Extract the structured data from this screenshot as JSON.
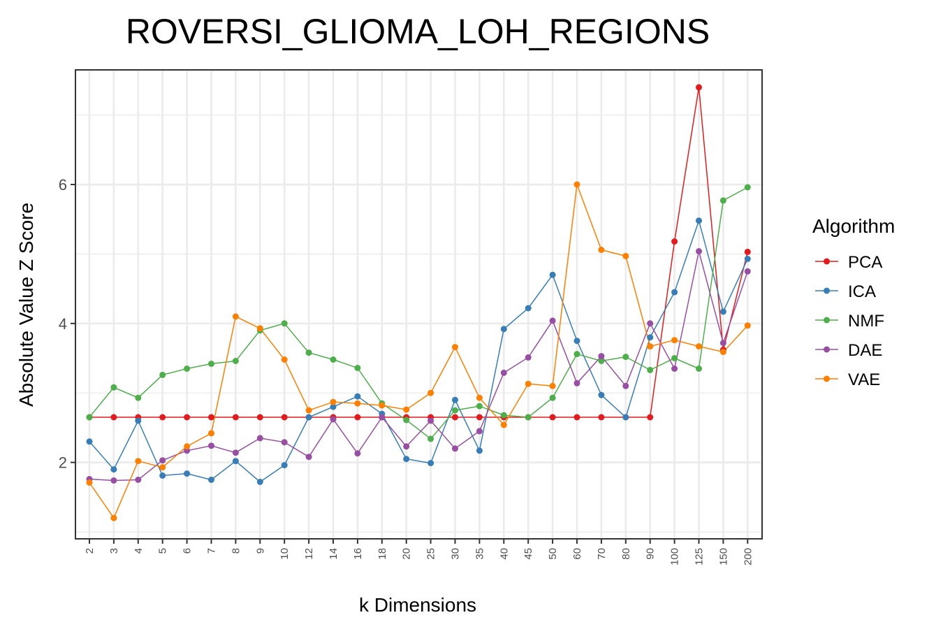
{
  "chart_data": {
    "type": "line",
    "title": "ROVERSI_GLIOMA_LOH_REGIONS",
    "xlabel": "k Dimensions",
    "ylabel": "Absolute Value Z Score",
    "categories": [
      "2",
      "3",
      "4",
      "5",
      "6",
      "7",
      "8",
      "9",
      "10",
      "12",
      "14",
      "16",
      "18",
      "20",
      "25",
      "30",
      "35",
      "40",
      "45",
      "50",
      "60",
      "70",
      "80",
      "90",
      "100",
      "125",
      "150",
      "200"
    ],
    "yticks": [
      2,
      4,
      6
    ],
    "ylim": [
      0.9,
      7.65
    ],
    "grid": true,
    "legend_title": "Algorithm",
    "legend_position": "right",
    "series": [
      {
        "name": "PCA",
        "color": "#e41a1c",
        "values": [
          2.65,
          2.65,
          2.65,
          2.65,
          2.65,
          2.65,
          2.65,
          2.65,
          2.65,
          2.65,
          2.65,
          2.65,
          2.65,
          2.65,
          2.65,
          2.65,
          2.65,
          2.65,
          2.65,
          2.65,
          2.65,
          2.65,
          2.65,
          2.65,
          5.18,
          7.4,
          3.62,
          5.03
        ]
      },
      {
        "name": "ICA",
        "color": "#377eb8",
        "values": [
          2.3,
          1.9,
          2.6,
          1.81,
          1.84,
          1.75,
          2.02,
          1.72,
          1.96,
          2.65,
          2.8,
          2.95,
          2.7,
          2.05,
          1.99,
          2.9,
          2.17,
          3.92,
          4.22,
          4.7,
          3.75,
          2.97,
          2.65,
          3.8,
          4.45,
          5.48,
          4.17,
          4.93
        ]
      },
      {
        "name": "NMF",
        "color": "#4daf4a",
        "values": [
          2.65,
          3.08,
          2.93,
          3.26,
          3.35,
          3.42,
          3.46,
          3.9,
          4.0,
          3.58,
          3.48,
          3.36,
          2.85,
          2.61,
          2.34,
          2.75,
          2.81,
          2.68,
          2.65,
          2.93,
          3.56,
          3.46,
          3.52,
          3.33,
          3.5,
          3.35,
          5.77,
          5.96
        ]
      },
      {
        "name": "DAE",
        "color": "#984ea3",
        "values": [
          1.76,
          1.74,
          1.75,
          2.03,
          2.17,
          2.24,
          2.14,
          2.35,
          2.29,
          2.08,
          2.62,
          2.13,
          2.65,
          2.23,
          2.6,
          2.2,
          2.45,
          3.29,
          3.51,
          4.04,
          3.14,
          3.53,
          3.1,
          4.0,
          3.35,
          5.04,
          3.72,
          4.75
        ]
      },
      {
        "name": "VAE",
        "color": "#ff7f00",
        "values": [
          1.71,
          1.2,
          2.02,
          1.93,
          2.23,
          2.42,
          4.1,
          3.93,
          3.48,
          2.75,
          2.87,
          2.85,
          2.82,
          2.76,
          3.0,
          3.66,
          2.93,
          2.54,
          3.13,
          3.1,
          6.0,
          5.06,
          4.97,
          3.67,
          3.76,
          3.67,
          3.59,
          3.97
        ]
      }
    ]
  }
}
